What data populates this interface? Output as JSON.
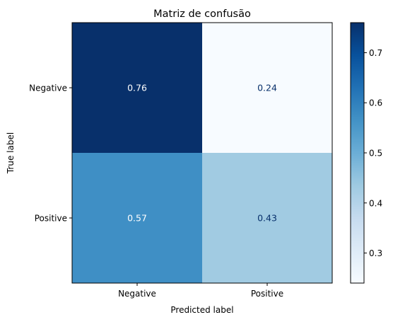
{
  "chart_data": {
    "type": "heatmap",
    "title": "Matriz de confusão",
    "xlabel": "Predicted label",
    "ylabel": "True label",
    "x_categories": [
      "Negative",
      "Positive"
    ],
    "y_categories": [
      "Negative",
      "Positive"
    ],
    "values": [
      [
        0.76,
        0.24
      ],
      [
        0.57,
        0.43
      ]
    ],
    "cell_labels": [
      [
        "0.76",
        "0.24"
      ],
      [
        "0.57",
        "0.43"
      ]
    ],
    "colormap": "Blues",
    "colorbar": {
      "range": [
        0.24,
        0.76
      ],
      "ticks": [
        0.3,
        0.4,
        0.5,
        0.6,
        0.7
      ],
      "tick_labels": [
        "0.3",
        "0.4",
        "0.5",
        "0.6",
        "0.7"
      ]
    },
    "grid": false,
    "text_colors": {
      "dark_cell": "#ffffff",
      "light_cell": "#08306b"
    }
  }
}
